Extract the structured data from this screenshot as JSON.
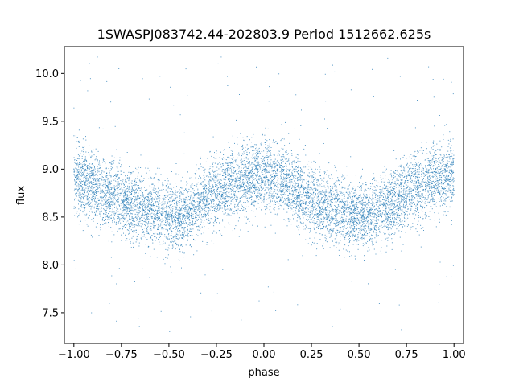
{
  "chart_data": {
    "type": "scatter",
    "title": "1SWASPJ083742.44-202803.9 Period 1512662.625s",
    "xlabel": "phase",
    "ylabel": "flux",
    "xlim": [
      -1.05,
      1.05
    ],
    "ylim": [
      7.18,
      10.28
    ],
    "xticks": [
      -1.0,
      -0.75,
      -0.5,
      -0.25,
      0.0,
      0.25,
      0.5,
      0.75,
      1.0
    ],
    "xtick_labels": [
      "−1.00",
      "−0.75",
      "−0.50",
      "−0.25",
      "0.00",
      "0.25",
      "0.50",
      "0.75",
      "1.00"
    ],
    "yticks": [
      7.5,
      8.0,
      8.5,
      9.0,
      9.5,
      10.0
    ],
    "ytick_labels": [
      "7.5",
      "8.0",
      "8.5",
      "9.0",
      "9.5",
      "10.0"
    ],
    "grid": false,
    "legend": "none",
    "point_color": "#1f77b4",
    "series": [
      {
        "phase_min": -1.0,
        "phase_max": 1.0,
        "profile": {
          "phase": [
            -1.0,
            -0.9,
            -0.8,
            -0.7,
            -0.6,
            -0.5,
            -0.45,
            -0.4,
            -0.3,
            -0.2,
            -0.1,
            0.0,
            0.1,
            0.2,
            0.3,
            0.4,
            0.5,
            0.55,
            0.6,
            0.7,
            0.8,
            0.9,
            1.0
          ],
          "flux_mean": [
            8.95,
            8.82,
            8.72,
            8.62,
            8.57,
            8.52,
            8.5,
            8.55,
            8.7,
            8.82,
            8.88,
            8.95,
            8.88,
            8.72,
            8.62,
            8.55,
            8.52,
            8.5,
            8.55,
            8.68,
            8.8,
            8.9,
            8.95
          ]
        },
        "flux_spread_core": 0.18,
        "outlier_range": [
          7.3,
          10.2
        ],
        "sampled_points": 9000
      }
    ]
  }
}
